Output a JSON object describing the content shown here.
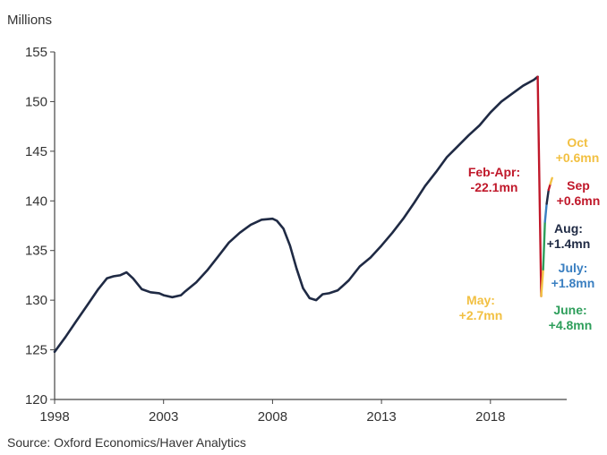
{
  "chart_data": {
    "type": "line",
    "title": "",
    "xlabel": "",
    "ylabel": "Millions",
    "source": "Source: Oxford Economics/Haver Analytics",
    "xlim": [
      1998,
      2021.5
    ],
    "ylim": [
      120,
      155
    ],
    "x_ticks": [
      1998,
      2003,
      2008,
      2013,
      2018
    ],
    "y_ticks": [
      120,
      125,
      130,
      135,
      140,
      145,
      150,
      155
    ],
    "grid": false,
    "colors": {
      "main": "#1f2a44",
      "feb_apr": "#c0182a",
      "may": "#f2c042",
      "june": "#2e9e5b",
      "july": "#3a7fc1",
      "aug": "#1f2a44",
      "sep": "#c0182a",
      "oct": "#f2c042"
    },
    "series": [
      {
        "key": "main",
        "x": [
          1998.0,
          1998.5,
          1999.0,
          1999.5,
          2000.0,
          2000.4,
          2000.7,
          2001.0,
          2001.3,
          2001.6,
          2002.0,
          2002.4,
          2002.8,
          2003.0,
          2003.4,
          2003.8,
          2004.0,
          2004.5,
          2005.0,
          2005.5,
          2006.0,
          2006.5,
          2007.0,
          2007.5,
          2008.0,
          2008.2,
          2008.5,
          2008.8,
          2009.1,
          2009.4,
          2009.7,
          2010.0,
          2010.3,
          2010.6,
          2011.0,
          2011.5,
          2012.0,
          2012.5,
          2013.0,
          2013.5,
          2014.0,
          2014.5,
          2015.0,
          2015.5,
          2016.0,
          2016.5,
          2017.0,
          2017.5,
          2018.0,
          2018.5,
          2019.0,
          2019.5,
          2020.0,
          2020.17
        ],
        "values": [
          124.8,
          126.3,
          127.9,
          129.5,
          131.1,
          132.2,
          132.4,
          132.5,
          132.8,
          132.2,
          131.1,
          130.8,
          130.7,
          130.5,
          130.3,
          130.5,
          130.9,
          131.8,
          133.0,
          134.4,
          135.8,
          136.8,
          137.6,
          138.1,
          138.2,
          138.0,
          137.2,
          135.5,
          133.2,
          131.2,
          130.2,
          130.0,
          130.6,
          130.7,
          131.0,
          132.0,
          133.4,
          134.3,
          135.5,
          136.8,
          138.2,
          139.8,
          141.5,
          142.9,
          144.4,
          145.5,
          146.6,
          147.6,
          148.9,
          150.0,
          150.8,
          151.6,
          152.2,
          152.5
        ]
      },
      {
        "key": "feb_apr",
        "x": [
          2020.17,
          2020.33
        ],
        "values": [
          152.5,
          130.4
        ]
      },
      {
        "key": "may",
        "x": [
          2020.33,
          2020.42
        ],
        "values": [
          130.4,
          133.1
        ]
      },
      {
        "key": "june",
        "x": [
          2020.42,
          2020.5
        ],
        "values": [
          133.1,
          137.9
        ]
      },
      {
        "key": "july",
        "x": [
          2020.5,
          2020.58
        ],
        "values": [
          137.9,
          139.7
        ]
      },
      {
        "key": "aug",
        "x": [
          2020.58,
          2020.67
        ],
        "values": [
          139.7,
          141.1
        ]
      },
      {
        "key": "sep",
        "x": [
          2020.67,
          2020.75
        ],
        "values": [
          141.1,
          141.7
        ]
      },
      {
        "key": "oct",
        "x": [
          2020.75,
          2020.83
        ],
        "values": [
          141.7,
          142.3
        ]
      }
    ],
    "annotations": [
      {
        "id": "feb-apr",
        "color_key": "feb_apr",
        "lines": [
          "Feb-Apr:",
          "-22.1mn"
        ]
      },
      {
        "id": "oct",
        "color_key": "oct",
        "lines": [
          "Oct",
          "+0.6mn"
        ]
      },
      {
        "id": "sep",
        "color_key": "sep",
        "lines": [
          "Sep",
          "+0.6mn"
        ]
      },
      {
        "id": "aug",
        "color_key": "aug",
        "lines": [
          "Aug:",
          "+1.4mn"
        ]
      },
      {
        "id": "july",
        "color_key": "july",
        "lines": [
          "July:",
          "+1.8mn"
        ]
      },
      {
        "id": "may",
        "color_key": "may",
        "lines": [
          "May:",
          "+2.7mn"
        ]
      },
      {
        "id": "june",
        "color_key": "june",
        "lines": [
          "June:",
          "+4.8mn"
        ]
      }
    ]
  }
}
